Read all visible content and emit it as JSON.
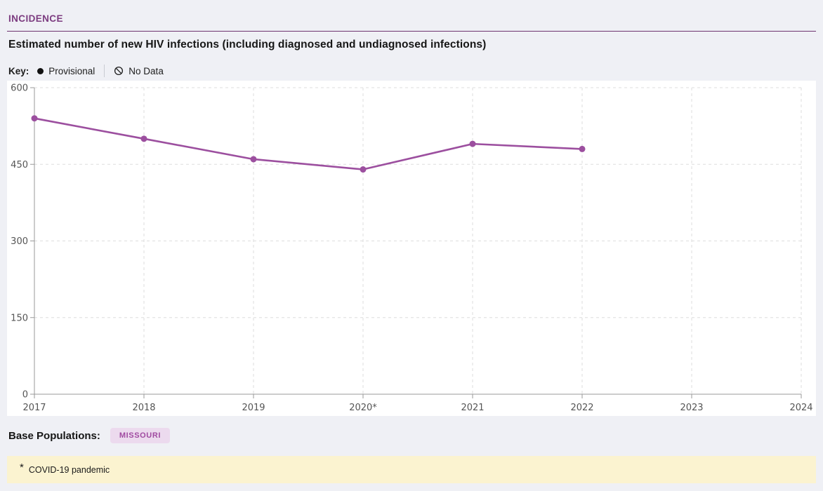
{
  "page": {
    "section_title": "INCIDENCE",
    "chart_title": "Estimated number of new HIV infections (including diagnosed and undiagnosed infections)",
    "key": {
      "label": "Key:",
      "items": [
        {
          "icon": "provisional-dot-icon",
          "label": "Provisional"
        },
        {
          "icon": "no-data-icon",
          "label": "No Data"
        }
      ]
    },
    "base_populations": {
      "label": "Base Populations:",
      "badges": [
        "MISSOURI"
      ]
    },
    "footnote": {
      "marker": "*",
      "text": "COVID-19 pandemic"
    }
  },
  "colors": {
    "accent_purple": "#9c4f9f",
    "header_purple": "#7c3c80",
    "divider_purple": "#6e3470",
    "badge_bg": "#ecdaee",
    "badge_text": "#a04aa1",
    "footnote_bg": "#fbf3d0",
    "page_bg": "#eff0f5",
    "grid_gray": "#dedede",
    "axis_gray": "#999999"
  },
  "chart_data": {
    "type": "line",
    "title": "Estimated number of new HIV infections (including diagnosed and undiagnosed infections)",
    "x": [
      2017,
      2018,
      2019,
      2020,
      2021,
      2022
    ],
    "x_tick_labels": [
      "2017",
      "2018",
      "2019",
      "2020*",
      "2021",
      "2022",
      "2023",
      "2024"
    ],
    "series": [
      {
        "name": "Estimated new HIV infections",
        "values": [
          540,
          500,
          460,
          440,
          490,
          480
        ]
      }
    ],
    "xlim": [
      2017,
      2024
    ],
    "ylim": [
      0,
      600
    ],
    "y_ticks": [
      0,
      150,
      300,
      450,
      600
    ],
    "grid": "dashed",
    "legend_position": "none",
    "line_color": "#9c4f9f",
    "xlabel": "",
    "ylabel": ""
  }
}
